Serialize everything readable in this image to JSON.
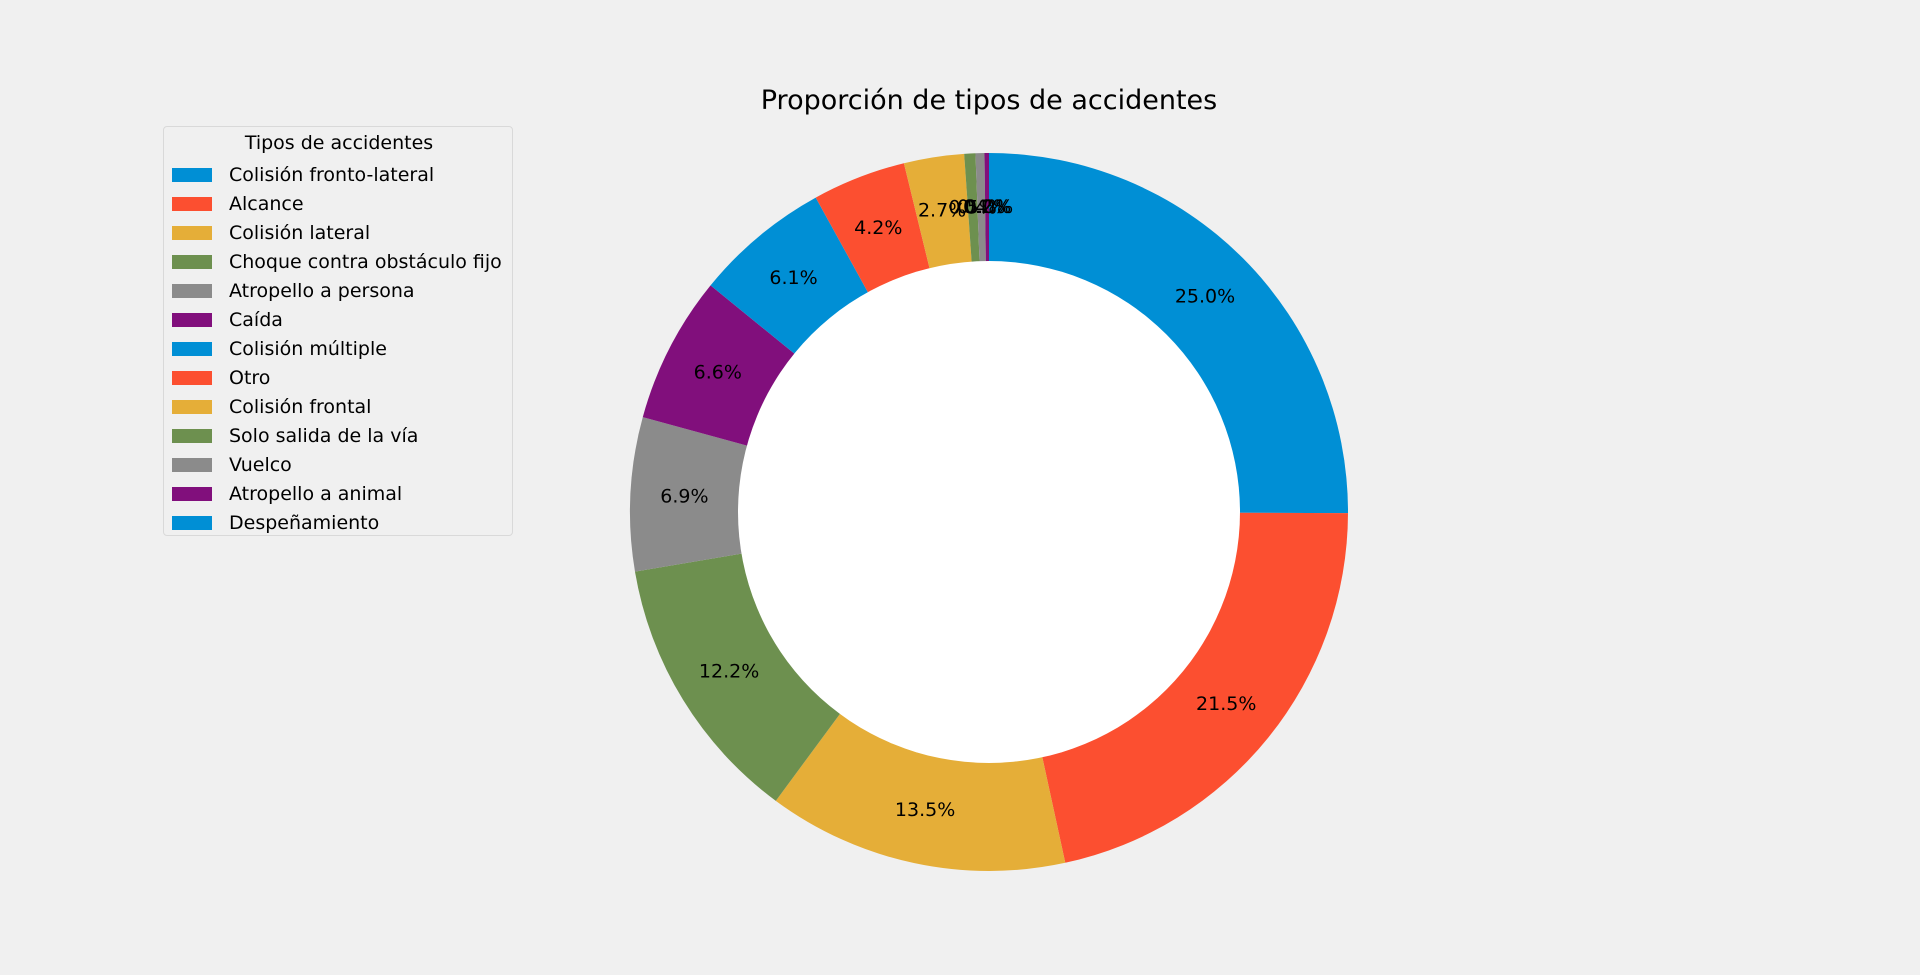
{
  "chart_data": {
    "type": "pie",
    "donut": true,
    "title": "Proporción de tipos de accidentes",
    "legend": {
      "title": "Tipos de accidentes",
      "placement": "upper-left"
    },
    "categories": [
      "Colisión fronto-lateral",
      "Alcance",
      "Colisión lateral",
      "Choque contra obstáculo fijo",
      "Atropello a persona",
      "Caída",
      "Colisión múltiple",
      "Otro",
      "Colisión frontal",
      "Solo salida de la vía",
      "Vuelco",
      "Atropello a animal",
      "Despeñamiento"
    ],
    "values": [
      25.0,
      21.5,
      13.5,
      12.2,
      6.9,
      6.6,
      6.1,
      4.2,
      2.7,
      0.5,
      0.4,
      0.2,
      0.0
    ],
    "labels": [
      "25.0%",
      "21.5%",
      "13.5%",
      "12.2%",
      "6.9%",
      "6.6%",
      "6.1%",
      "4.2%",
      "2.7%",
      "0.5%",
      "0.4%",
      "0.2%",
      "0.0%"
    ],
    "colors": [
      "#008fd5",
      "#fc4f30",
      "#e5ae38",
      "#6d904f",
      "#8b8b8b",
      "#810f7c",
      "#008fd5",
      "#fc4f30",
      "#e5ae38",
      "#6d904f",
      "#8b8b8b",
      "#810f7c",
      "#008fd5"
    ],
    "start_angle_deg": 90,
    "direction": "clockwise"
  }
}
